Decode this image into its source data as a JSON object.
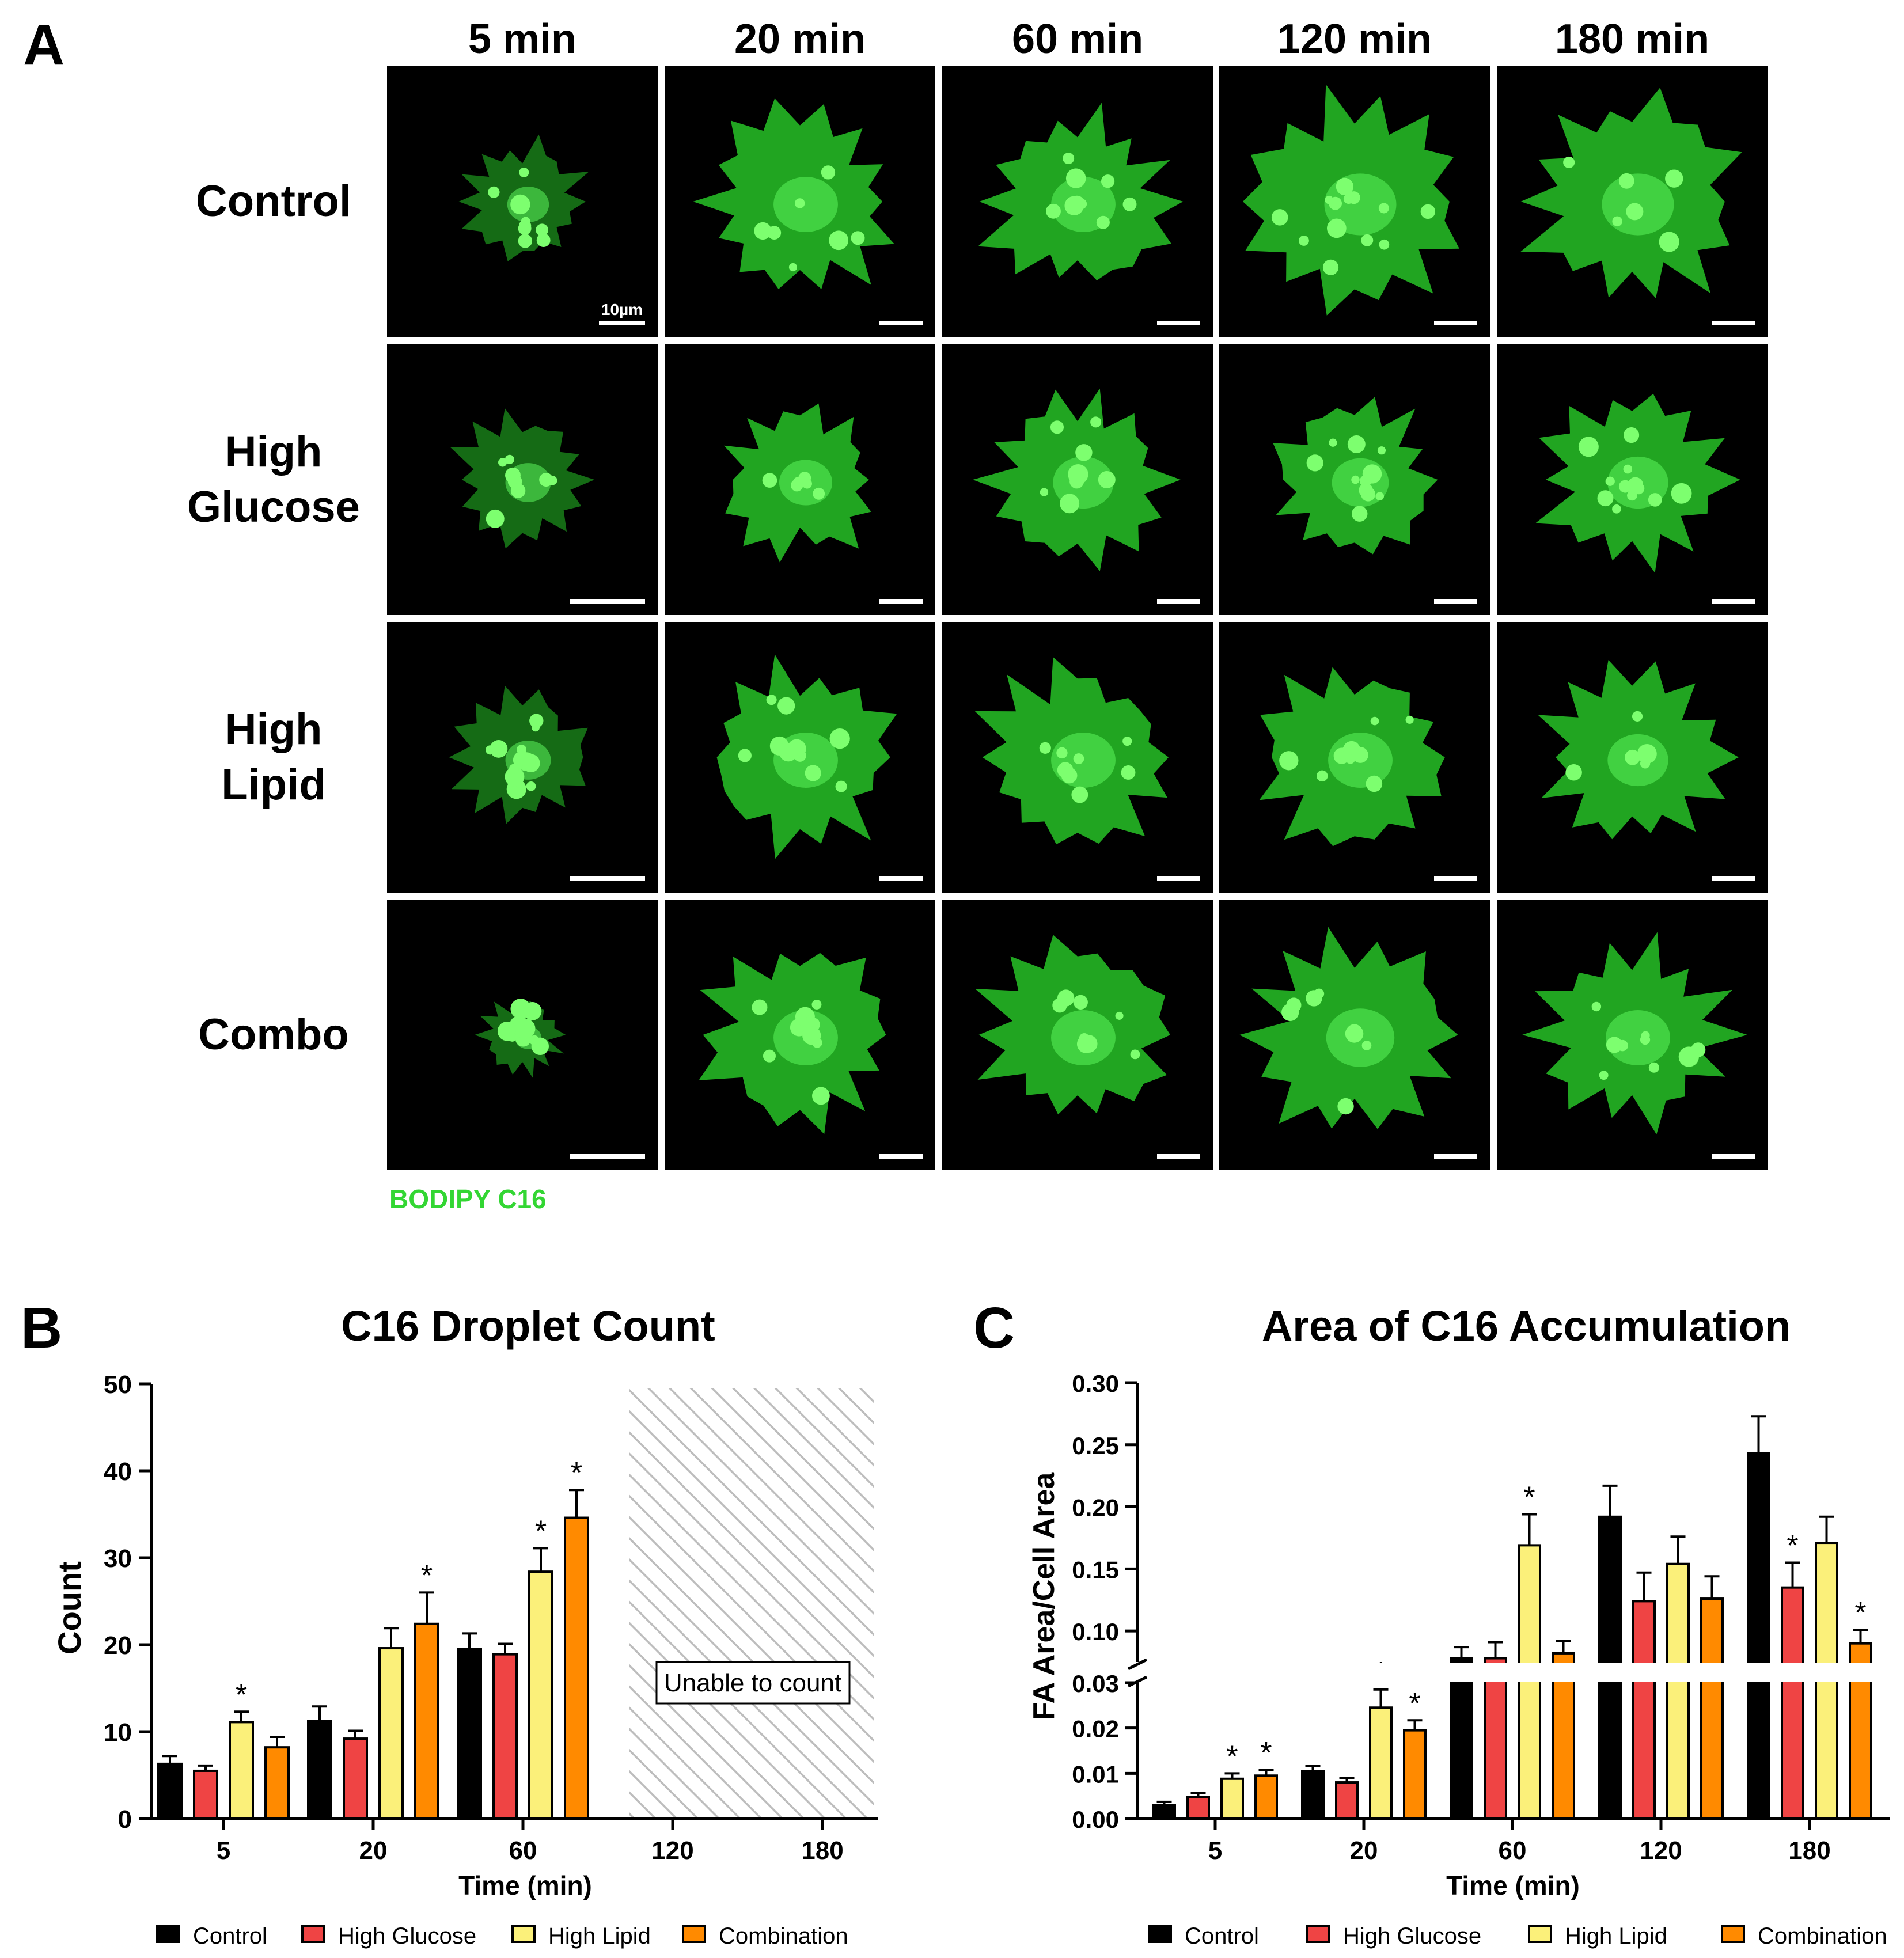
{
  "panel_a": {
    "letter": "A",
    "column_headers": [
      "5 min",
      "20 min",
      "60 min",
      "120 min",
      "180 min"
    ],
    "row_labels": [
      [
        "Control"
      ],
      [
        "High",
        "Glucose"
      ],
      [
        "High",
        "Lipid"
      ],
      [
        "Combo"
      ]
    ],
    "scale_bar_label": "10µm",
    "stain_label": "BODIPY C16",
    "stain_color": "#33d633",
    "cell_color": "#27c227"
  },
  "chart_data": [
    {
      "type": "bar",
      "panel": "B",
      "title": "C16 Droplet Count",
      "xlabel": "Time (min)",
      "ylabel": "Count",
      "ylim": [
        0,
        50
      ],
      "yticks": [
        0,
        10,
        20,
        30,
        40,
        50
      ],
      "categories": [
        "5",
        "20",
        "60",
        "120",
        "180"
      ],
      "series": [
        {
          "name": "Control",
          "color": "#000000",
          "values": [
            6.3,
            11.2,
            19.5,
            null,
            null
          ],
          "errors": [
            0.9,
            1.7,
            1.8,
            null,
            null
          ],
          "significant": [
            false,
            false,
            false,
            false,
            false
          ]
        },
        {
          "name": "High Glucose",
          "color": "#ef4444",
          "values": [
            5.5,
            9.2,
            18.9,
            null,
            null
          ],
          "errors": [
            0.6,
            0.9,
            1.2,
            null,
            null
          ],
          "significant": [
            false,
            false,
            false,
            false,
            false
          ]
        },
        {
          "name": "High Lipid",
          "color": "#fbf07a",
          "values": [
            11.1,
            19.6,
            28.4,
            null,
            null
          ],
          "errors": [
            1.2,
            2.3,
            2.7,
            null,
            null
          ],
          "significant": [
            true,
            false,
            true,
            false,
            false
          ]
        },
        {
          "name": "Combination",
          "color": "#ff8a00",
          "values": [
            8.2,
            22.4,
            34.6,
            null,
            null
          ],
          "errors": [
            1.2,
            3.6,
            3.2,
            null,
            null
          ],
          "significant": [
            false,
            true,
            true,
            false,
            false
          ]
        }
      ],
      "annotation": "Unable to count",
      "hatched_categories": [
        "120",
        "180"
      ],
      "significance_marker": "*",
      "legend_position": "bottom"
    },
    {
      "type": "bar",
      "panel": "C",
      "title": "Area of C16 Accumulation",
      "xlabel": "Time (min)",
      "ylabel": "FA Area/Cell Area",
      "broken_axis": true,
      "lower_ylim": [
        0,
        0.03
      ],
      "lower_yticks": [
        "0.00",
        "0.01",
        "0.02",
        "0.03"
      ],
      "upper_ylim": [
        0.075,
        0.3
      ],
      "upper_yticks": [
        "0.10",
        "0.15",
        "0.20",
        "0.25",
        "0.30"
      ],
      "categories": [
        "5",
        "20",
        "60",
        "120",
        "180"
      ],
      "series": [
        {
          "name": "Control",
          "color": "#000000",
          "values": [
            0.003,
            0.0105,
            0.078,
            0.192,
            0.243
          ],
          "errors": [
            0.0007,
            0.0012,
            0.009,
            0.025,
            0.03
          ],
          "significant": [
            false,
            false,
            false,
            false,
            false
          ]
        },
        {
          "name": "High Glucose",
          "color": "#ef4444",
          "values": [
            0.0048,
            0.008,
            0.078,
            0.124,
            0.135
          ],
          "errors": [
            0.0009,
            0.001,
            0.013,
            0.023,
            0.02
          ],
          "significant": [
            false,
            false,
            false,
            false,
            true
          ]
        },
        {
          "name": "High Lipid",
          "color": "#fbf07a",
          "values": [
            0.0088,
            0.0245,
            0.169,
            0.154,
            0.171
          ],
          "errors": [
            0.0012,
            0.004,
            0.025,
            0.022,
            0.021
          ],
          "significant": [
            true,
            true,
            true,
            false,
            false
          ]
        },
        {
          "name": "Combination",
          "color": "#ff8a00",
          "values": [
            0.0095,
            0.0195,
            0.082,
            0.126,
            0.09
          ],
          "errors": [
            0.0013,
            0.0022,
            0.01,
            0.018,
            0.011
          ],
          "significant": [
            true,
            true,
            false,
            false,
            true
          ]
        }
      ],
      "significance_marker": "*",
      "legend_position": "bottom"
    }
  ]
}
